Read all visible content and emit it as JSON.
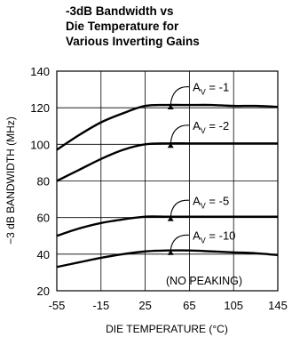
{
  "chart_data": {
    "type": "line",
    "title_lines": [
      "-3dB Bandwidth vs",
      "Die Temperature for",
      "Various Inverting Gains"
    ],
    "xlabel": "DIE TEMPERATURE (°C)",
    "ylabel": "−3 dB BANDWIDTH (MHz)",
    "xlim": [
      -55,
      145
    ],
    "ylim": [
      20,
      140
    ],
    "xticks": [
      -55,
      -15,
      25,
      65,
      105,
      145
    ],
    "yticks": [
      20,
      40,
      60,
      80,
      100,
      120,
      140
    ],
    "xtick_labels": [
      "-55",
      "-15",
      "25",
      "65",
      "105",
      "145"
    ],
    "ytick_labels": [
      "20",
      "40",
      "60",
      "80",
      "100",
      "120",
      "140"
    ],
    "grid": true,
    "note": "(NO PEAKING)",
    "x": [
      -55,
      -35,
      -15,
      5,
      25,
      45,
      65,
      85,
      105,
      125,
      145
    ],
    "series": [
      {
        "name": "AV = -1",
        "label_main": "A",
        "label_sub": "V",
        "label_rest": " = -1",
        "values": [
          97,
          105,
          112,
          117,
          121,
          121.5,
          121.5,
          121.5,
          121,
          121,
          120.5
        ]
      },
      {
        "name": "AV = -2",
        "label_main": "A",
        "label_sub": "V",
        "label_rest": " = -2",
        "values": [
          80,
          86,
          92,
          97,
          100,
          100.5,
          100.5,
          100.5,
          100.5,
          100.5,
          100.5
        ]
      },
      {
        "name": "AV = -5",
        "label_main": "A",
        "label_sub": "V",
        "label_rest": " = -5",
        "values": [
          50,
          54,
          57,
          59,
          60.5,
          60.5,
          60.5,
          60.5,
          60.5,
          60.5,
          60.5
        ]
      },
      {
        "name": "AV = -10",
        "label_main": "A",
        "label_sub": "V",
        "label_rest": " = -10",
        "values": [
          33,
          35.5,
          38,
          40,
          41.5,
          42,
          42,
          41.5,
          41,
          40.5,
          39.5
        ]
      }
    ],
    "curve_labels": [
      {
        "series": 0,
        "x": 68,
        "y": 129,
        "arrow_to": [
          48,
          122
        ]
      },
      {
        "series": 1,
        "x": 68,
        "y": 108,
        "arrow_to": [
          48,
          101
        ]
      },
      {
        "series": 2,
        "x": 68,
        "y": 67,
        "arrow_to": [
          48,
          61
        ]
      },
      {
        "series": 3,
        "x": 68,
        "y": 48,
        "arrow_to": [
          48,
          42.5
        ]
      }
    ]
  }
}
